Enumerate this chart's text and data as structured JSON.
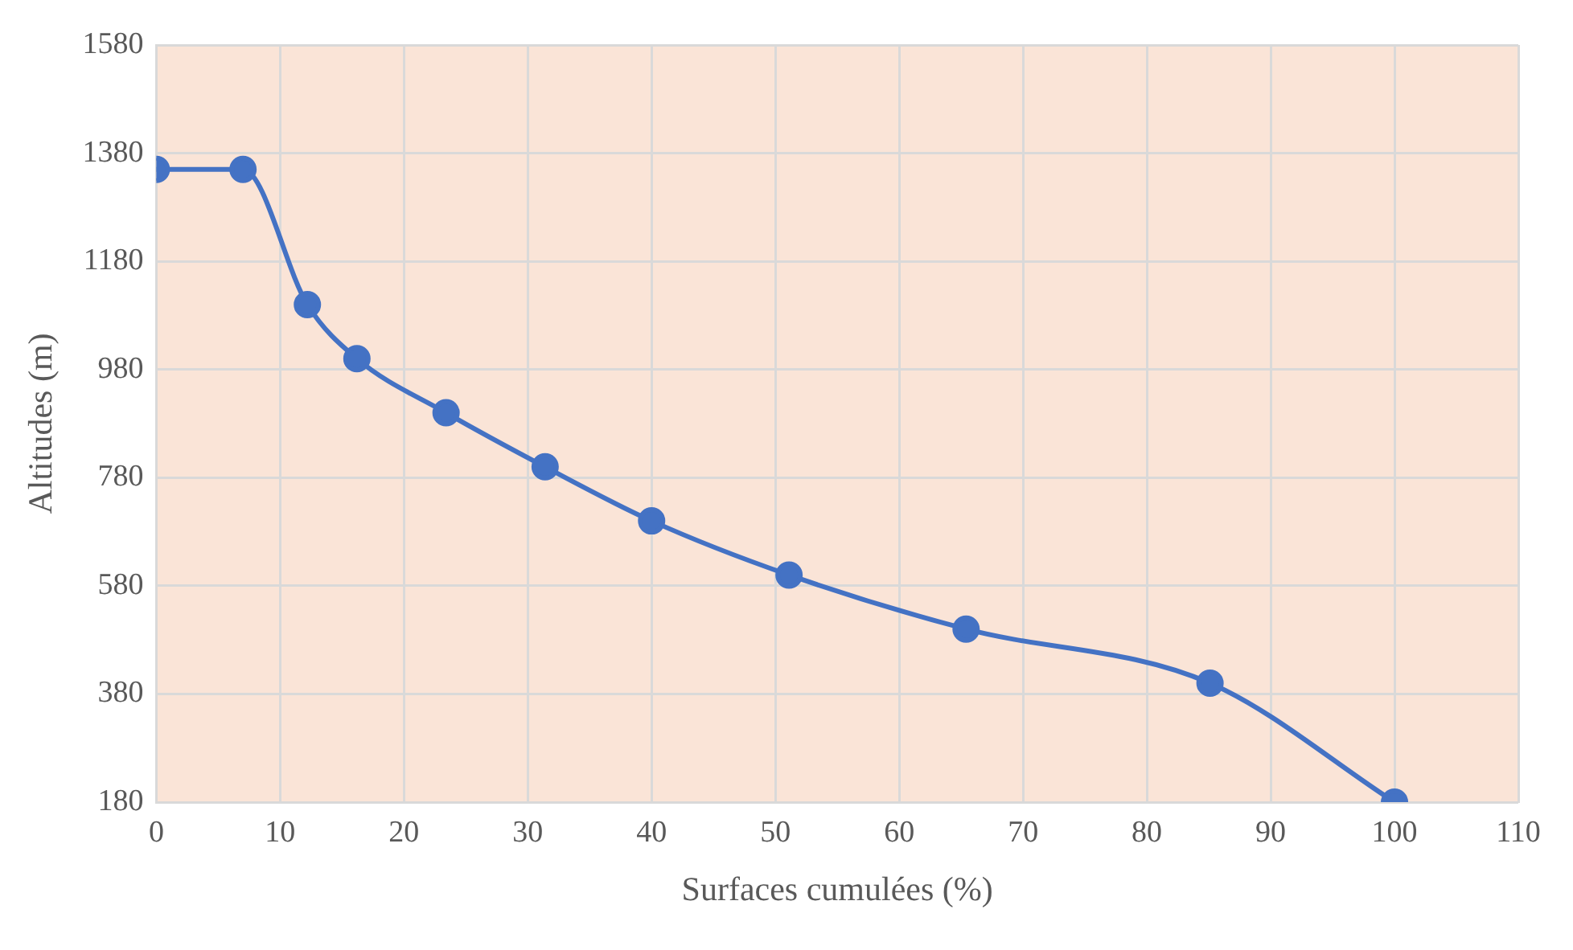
{
  "chart_data": {
    "type": "line",
    "xlabel": "Surfaces cumulées (%)",
    "ylabel": "Altitudes (m)",
    "x": [
      0,
      7,
      12.2,
      16.2,
      23.4,
      31.4,
      40,
      51.1,
      65.4,
      85.1,
      100
    ],
    "series": [
      {
        "color": "#4472c4",
        "values": [
          1350,
          1350,
          1100,
          1000,
          900,
          800,
          700,
          600,
          500,
          400,
          180
        ]
      }
    ],
    "xlim": [
      0,
      110
    ],
    "xticks": [
      0,
      10,
      20,
      30,
      40,
      50,
      60,
      70,
      80,
      90,
      100,
      110
    ],
    "ylim": [
      180,
      1580
    ],
    "yticks": [
      180,
      380,
      580,
      780,
      980,
      1180,
      1380,
      1580
    ],
    "grid": true,
    "legend": false,
    "marker": "circle",
    "line_style": "solid"
  }
}
